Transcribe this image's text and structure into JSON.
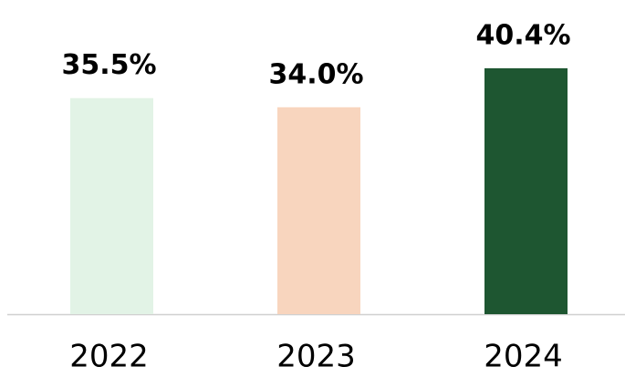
{
  "chart_data": {
    "type": "bar",
    "categories": [
      "2022",
      "2023",
      "2024"
    ],
    "values": [
      35.5,
      34.0,
      40.4
    ],
    "value_labels": [
      "35.5%",
      "34.0%",
      "40.4%"
    ],
    "colors": [
      "#e2f3e6",
      "#f8d5be",
      "#1e5631"
    ]
  }
}
